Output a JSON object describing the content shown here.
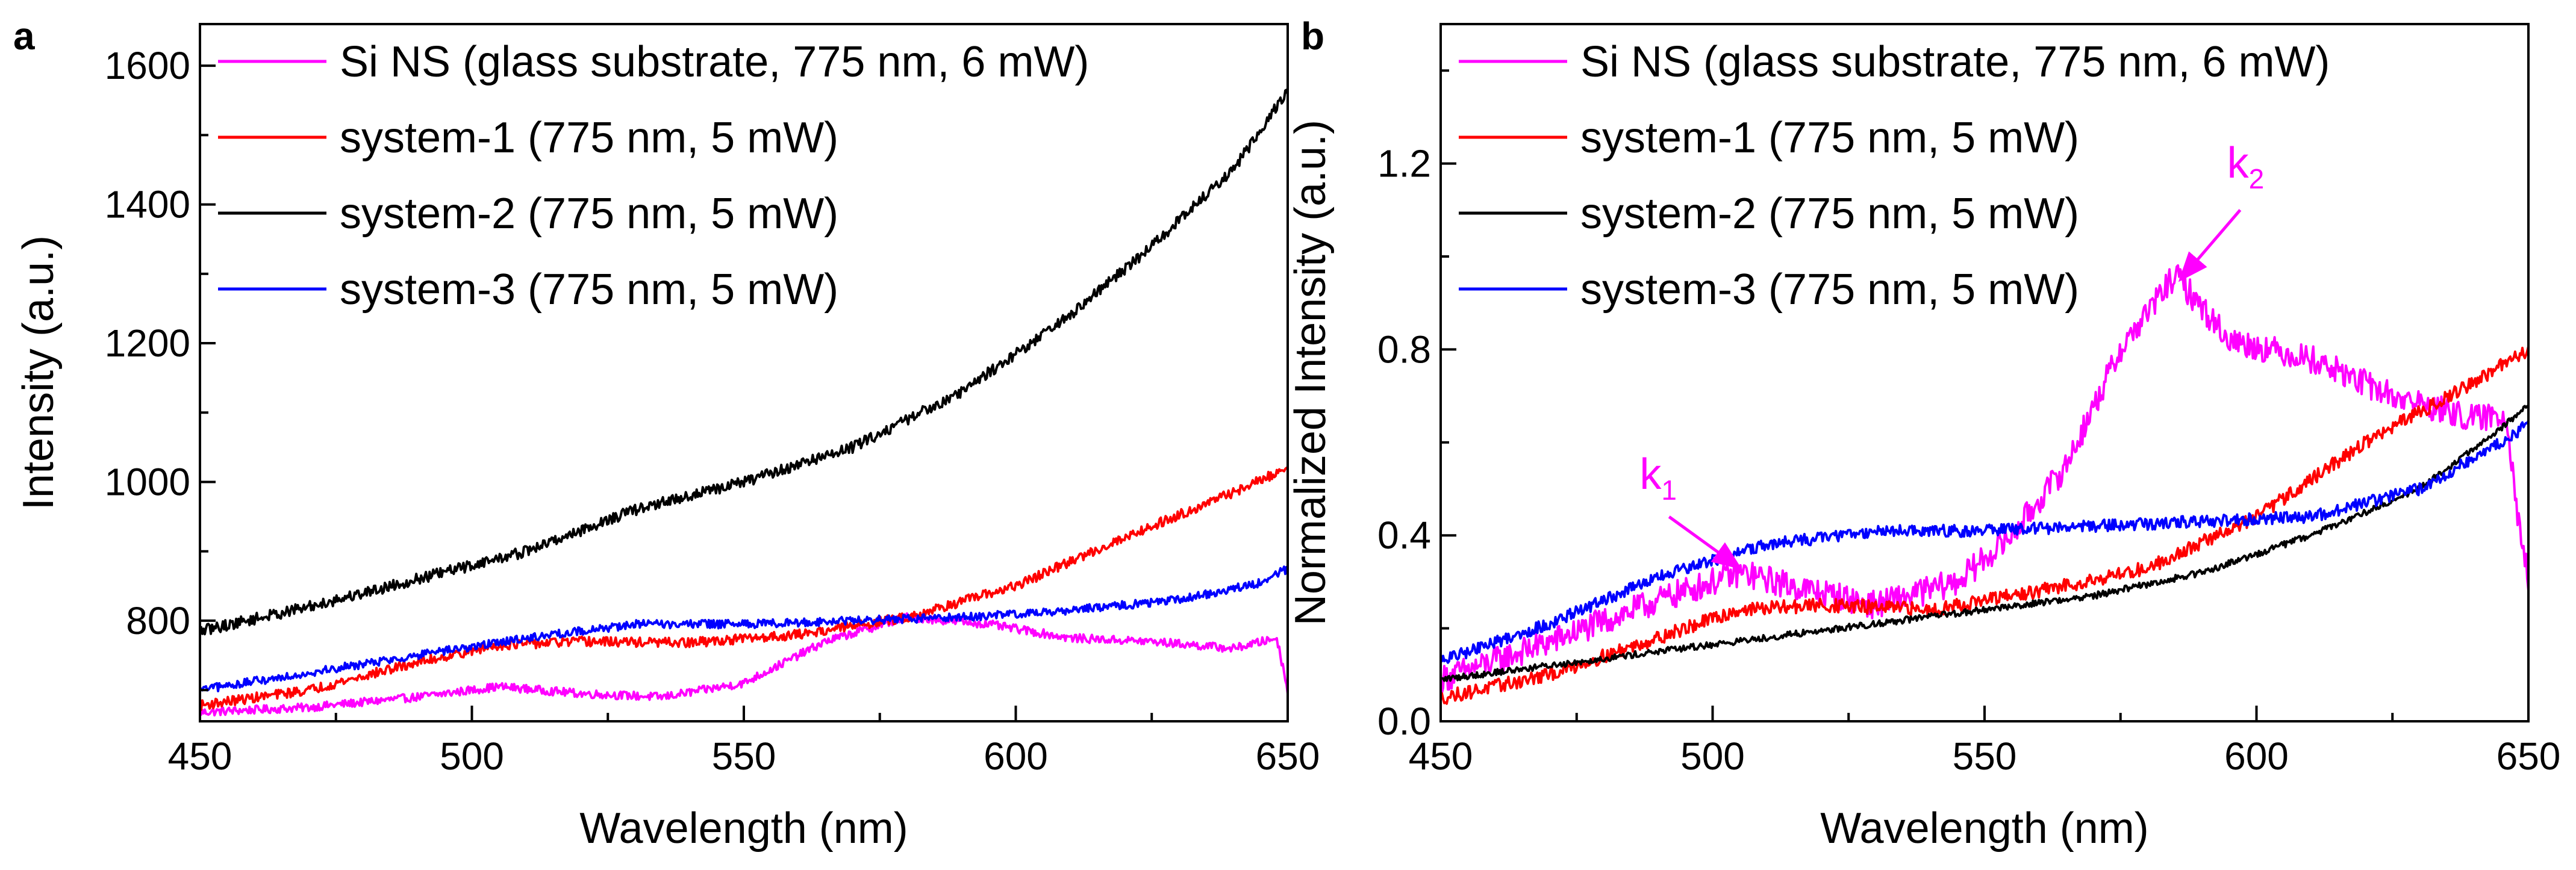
{
  "chart_data": [
    {
      "panel_label": "a",
      "type": "line",
      "xlabel": "Wavelength (nm)",
      "ylabel": "Intensity (a.u.)",
      "xlim": [
        450,
        650
      ],
      "ylim": [
        655,
        1660
      ],
      "xticks": [
        450,
        500,
        550,
        600,
        650
      ],
      "yticks": [
        800,
        1000,
        1200,
        1400,
        1600
      ],
      "xtick_labels": [
        "450",
        "500",
        "550",
        "600",
        "650"
      ],
      "ytick_labels": [
        "800",
        "1000",
        "1200",
        "1400",
        "1600"
      ],
      "legend_position": "top-left",
      "series": [
        {
          "name": "Si NS (glass substrate, 775 nm, 6 mW)",
          "color": "#ff00ff",
          "x": [
            450,
            470,
            490,
            505,
            520,
            535,
            550,
            565,
            580,
            595,
            610,
            625,
            640,
            648,
            650
          ],
          "y": [
            668,
            675,
            690,
            705,
            695,
            690,
            710,
            770,
            805,
            795,
            775,
            770,
            760,
            775,
            700
          ],
          "noise": 6
        },
        {
          "name": "system-1 (775 nm, 5 mW)",
          "color": "#ff0000",
          "x": [
            450,
            470,
            490,
            505,
            520,
            540,
            560,
            580,
            600,
            620,
            640,
            650
          ],
          "y": [
            678,
            700,
            740,
            765,
            770,
            768,
            780,
            805,
            850,
            920,
            985,
            1020
          ],
          "noise": 7
        },
        {
          "name": "system-2 (775 nm, 5 mW)",
          "color": "#000000",
          "x": [
            450,
            470,
            490,
            510,
            530,
            550,
            570,
            590,
            610,
            625,
            640,
            650
          ],
          "y": [
            785,
            820,
            860,
            900,
            960,
            1000,
            1050,
            1130,
            1240,
            1340,
            1450,
            1565
          ],
          "noise": 8
        },
        {
          "name": "system-3 (775 nm, 5 mW)",
          "color": "#0000ff",
          "x": [
            450,
            470,
            490,
            510,
            530,
            550,
            570,
            590,
            610,
            630,
            645,
            650
          ],
          "y": [
            700,
            725,
            750,
            775,
            795,
            795,
            800,
            805,
            815,
            830,
            855,
            875
          ],
          "noise": 6
        }
      ],
      "annotations": []
    },
    {
      "panel_label": "b",
      "type": "line",
      "xlabel": "Wavelength (nm)",
      "ylabel": "Normalized Intensity (a.u.)",
      "xlim": [
        450,
        650
      ],
      "ylim": [
        0,
        1.5
      ],
      "xticks": [
        450,
        500,
        550,
        600,
        650
      ],
      "yticks": [
        0.0,
        0.4,
        0.8,
        1.2
      ],
      "xtick_labels": [
        "450",
        "500",
        "550",
        "600",
        "650"
      ],
      "ytick_labels": [
        "0.0",
        "0.4",
        "0.8",
        "1.2"
      ],
      "legend_position": "top-left",
      "series": [
        {
          "name": "Si NS (glass substrate, 775 nm, 6 mW)",
          "color": "#ff00ff",
          "x": [
            450,
            470,
            490,
            505,
            515,
            530,
            545,
            555,
            565,
            575,
            585,
            595,
            610,
            625,
            640,
            646,
            648,
            650
          ],
          "y": [
            0.09,
            0.17,
            0.26,
            0.32,
            0.29,
            0.25,
            0.3,
            0.4,
            0.55,
            0.8,
            0.96,
            0.82,
            0.78,
            0.7,
            0.65,
            0.66,
            0.45,
            0.3
          ],
          "noise": 0.03
        },
        {
          "name": "system-1 (775 nm, 5 mW)",
          "color": "#ff0000",
          "x": [
            450,
            470,
            490,
            505,
            520,
            540,
            560,
            580,
            600,
            620,
            640,
            650
          ],
          "y": [
            0.05,
            0.1,
            0.18,
            0.24,
            0.25,
            0.24,
            0.28,
            0.33,
            0.44,
            0.6,
            0.73,
            0.8
          ],
          "noise": 0.015
        },
        {
          "name": "system-2 (775 nm, 5 mW)",
          "color": "#000000",
          "x": [
            450,
            470,
            490,
            510,
            530,
            550,
            570,
            590,
            610,
            630,
            645,
            650
          ],
          "y": [
            0.09,
            0.12,
            0.15,
            0.18,
            0.21,
            0.24,
            0.27,
            0.32,
            0.4,
            0.5,
            0.63,
            0.68
          ],
          "noise": 0.007
        },
        {
          "name": "system-3 (775 nm, 5 mW)",
          "color": "#0000ff",
          "x": [
            450,
            470,
            490,
            510,
            530,
            550,
            570,
            590,
            610,
            630,
            645,
            650
          ],
          "y": [
            0.13,
            0.21,
            0.31,
            0.38,
            0.41,
            0.41,
            0.42,
            0.43,
            0.44,
            0.5,
            0.6,
            0.64
          ],
          "noise": 0.013
        }
      ],
      "annotations": [
        {
          "label": "k",
          "subscript": "1",
          "color": "#ff00ff",
          "text_x": 490,
          "text_y": 0.5,
          "arrow_from": [
            492,
            0.44
          ],
          "arrow_to": [
            505,
            0.33
          ]
        },
        {
          "label": "k",
          "subscript": "2",
          "color": "#ff00ff",
          "text_x": 598,
          "text_y": 1.17,
          "arrow_from": [
            597,
            1.1
          ],
          "arrow_to": [
            586,
            0.95
          ]
        }
      ]
    }
  ]
}
